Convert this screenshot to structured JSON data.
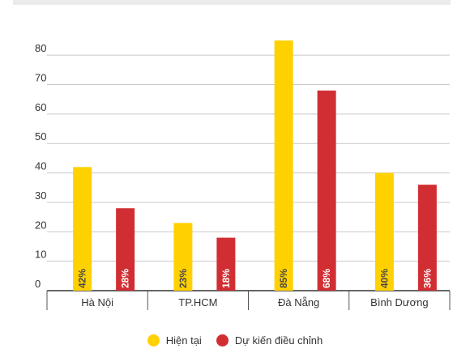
{
  "chart_data": {
    "type": "bar",
    "categories": [
      "Hà Nội",
      "TP.HCM",
      "Đà Nẵng",
      "Bình Dương"
    ],
    "series": [
      {
        "name": "Hiện tại",
        "color": "#FFD100",
        "label_color": "#4a4a4a",
        "values": [
          42,
          23,
          85,
          40
        ],
        "labels": [
          "42%",
          "23%",
          "85%",
          "40%"
        ]
      },
      {
        "name": "Dự kiến điều chỉnh",
        "color": "#D12E33",
        "label_color": "#ffffff",
        "values": [
          28,
          18,
          68,
          36
        ],
        "labels": [
          "28%",
          "18%",
          "68%",
          "36%"
        ]
      }
    ],
    "yticks": [
      0,
      10,
      20,
      30,
      40,
      50,
      60,
      70,
      80
    ],
    "ylim": [
      0,
      85
    ],
    "grid": true,
    "legend_position": "bottom"
  }
}
